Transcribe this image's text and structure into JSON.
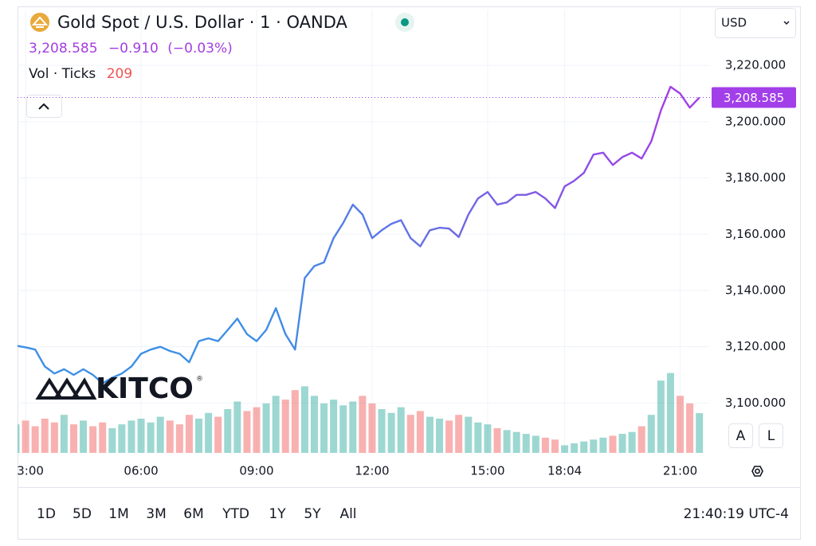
{
  "chart_data": {
    "type": "line",
    "title": "Gold Spot / U.S. Dollar · 1 · OANDA",
    "last_price": {
      "value": 3208.585,
      "label": "3,208.585"
    },
    "change": {
      "value": -0.91,
      "label": "−0.910"
    },
    "change_pct": {
      "value": -0.03,
      "label": "(−0.03%)"
    },
    "volume_label": "Vol · Ticks",
    "currency": "USD",
    "watermark": "KITCO",
    "scale_buttons": [
      "A",
      "L"
    ],
    "timeframes": [
      "1D",
      "5D",
      "1M",
      "3M",
      "6M",
      "YTD",
      "1Y",
      "5Y",
      "All"
    ],
    "clock": "21:40:19 UTC-4",
    "categories": [
      null,
      "3:00",
      null,
      null,
      null,
      null,
      null,
      null,
      null,
      null,
      null,
      null,
      null,
      "06:00",
      null,
      null,
      null,
      null,
      null,
      null,
      null,
      null,
      null,
      null,
      null,
      "09:00",
      null,
      null,
      null,
      null,
      null,
      null,
      null,
      null,
      null,
      null,
      null,
      "12:00",
      null,
      null,
      null,
      null,
      null,
      null,
      null,
      null,
      null,
      null,
      null,
      "15:00",
      null,
      null,
      null,
      null,
      null,
      null,
      null,
      "18:04",
      null,
      null,
      null,
      null,
      null,
      null,
      null,
      null,
      null,
      null,
      null,
      "21:00",
      null,
      null
    ],
    "series": [
      {
        "name": "Gold Spot",
        "colors": [
          "#3d8fe5",
          "#a23fe8"
        ],
        "values": [
          3120.4,
          3119.8,
          3119,
          3113,
          3110.5,
          3112,
          3110,
          3112,
          3110,
          3107,
          3109,
          3110.5,
          3113,
          3117.5,
          3119,
          3120,
          3118.5,
          3117.5,
          3114.5,
          3122,
          3123,
          3122,
          3126,
          3130,
          3124.5,
          3122,
          3126,
          3133.7,
          3124.5,
          3119,
          3144.4,
          3148.7,
          3150,
          3158.6,
          3164,
          3170.5,
          3167,
          3158.6,
          3161.4,
          3163.7,
          3165,
          3158.6,
          3155.7,
          3161.4,
          3162.3,
          3162,
          3159,
          3167,
          3172.7,
          3175,
          3170.5,
          3171.3,
          3174,
          3174,
          3175,
          3172.7,
          3169.3,
          3177,
          3179,
          3181.8,
          3188.3,
          3189,
          3184.6,
          3187.4,
          3189,
          3186.9,
          3193,
          3204,
          3212.4,
          3210,
          3205,
          3208.585
        ]
      },
      {
        "name": "Vol · Ticks",
        "up_color": "#26a69a",
        "down_color": "#ef5350",
        "values": [
          150,
          170,
          140,
          180,
          160,
          200,
          150,
          170,
          140,
          160,
          130,
          150,
          170,
          180,
          160,
          190,
          170,
          150,
          200,
          180,
          210,
          190,
          230,
          270,
          220,
          240,
          260,
          300,
          280,
          330,
          350,
          300,
          260,
          280,
          250,
          270,
          300,
          260,
          230,
          210,
          240,
          200,
          220,
          190,
          180,
          170,
          200,
          190,
          160,
          150,
          130,
          120,
          110,
          100,
          90,
          80,
          70,
          40,
          50,
          60,
          70,
          80,
          90,
          100,
          110,
          140,
          200,
          380,
          420,
          300,
          260,
          209
        ]
      }
    ],
    "ylim": [
      3082,
      3239
    ],
    "volume_ylim": [
      0,
      590
    ],
    "yticks": [
      {
        "value": 3100,
        "label": "3,100.000"
      },
      {
        "value": 3120,
        "label": "3,120.000"
      },
      {
        "value": 3140,
        "label": "3,140.000"
      },
      {
        "value": 3160,
        "label": "3,160.000"
      },
      {
        "value": 3180,
        "label": "3,180.000"
      },
      {
        "value": 3200,
        "label": "3,200.000"
      },
      {
        "value": 3220,
        "label": "3,220.000"
      }
    ],
    "grid": true
  }
}
